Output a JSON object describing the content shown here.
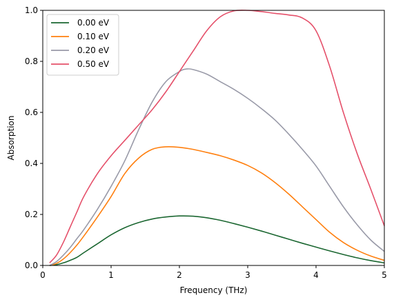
{
  "chart_data": {
    "type": "line",
    "title": "",
    "xlabel": "Frequency (THz)",
    "ylabel": "Absorption",
    "xlim": [
      0,
      5
    ],
    "ylim": [
      0,
      1.0
    ],
    "xticks": [
      0,
      1,
      2,
      3,
      4,
      5
    ],
    "xtick_labels": [
      "0",
      "1",
      "2",
      "3",
      "4",
      "5"
    ],
    "yticks": [
      0,
      0.2,
      0.4,
      0.6,
      0.8,
      1.0
    ],
    "ytick_labels": [
      "0.0",
      "0.2",
      "0.4",
      "0.6",
      "0.8",
      "1.0"
    ],
    "grid": false,
    "legend_position": "top-left",
    "series": [
      {
        "name": "0.00 eV",
        "color": "#1a6630",
        "x": [
          0.1,
          0.2,
          0.3,
          0.4,
          0.5,
          0.6,
          0.8,
          1.0,
          1.2,
          1.4,
          1.6,
          1.8,
          2.0,
          2.2,
          2.4,
          2.6,
          2.8,
          3.0,
          3.2,
          3.4,
          3.6,
          3.8,
          4.0,
          4.2,
          4.4,
          4.6,
          4.8,
          5.0
        ],
        "y": [
          0.0,
          0.003,
          0.01,
          0.02,
          0.032,
          0.05,
          0.085,
          0.12,
          0.148,
          0.168,
          0.182,
          0.19,
          0.194,
          0.193,
          0.187,
          0.177,
          0.164,
          0.15,
          0.135,
          0.119,
          0.103,
          0.087,
          0.072,
          0.057,
          0.043,
          0.03,
          0.019,
          0.01
        ]
      },
      {
        "name": "0.10 eV",
        "color": "#ff7f0e",
        "x": [
          0.1,
          0.2,
          0.3,
          0.4,
          0.5,
          0.6,
          0.8,
          1.0,
          1.2,
          1.4,
          1.6,
          1.8,
          2.0,
          2.2,
          2.4,
          2.6,
          2.8,
          3.0,
          3.2,
          3.4,
          3.6,
          3.8,
          4.0,
          4.2,
          4.4,
          4.6,
          4.8,
          5.0
        ],
        "y": [
          0.0,
          0.008,
          0.025,
          0.05,
          0.08,
          0.115,
          0.19,
          0.27,
          0.36,
          0.42,
          0.455,
          0.465,
          0.463,
          0.455,
          0.443,
          0.43,
          0.413,
          0.392,
          0.363,
          0.325,
          0.28,
          0.23,
          0.18,
          0.13,
          0.09,
          0.06,
          0.037,
          0.02
        ]
      },
      {
        "name": "0.20 eV",
        "color": "#999aa8",
        "x": [
          0.1,
          0.2,
          0.3,
          0.4,
          0.5,
          0.6,
          0.8,
          1.0,
          1.2,
          1.4,
          1.6,
          1.8,
          2.0,
          2.1,
          2.2,
          2.4,
          2.6,
          2.8,
          3.0,
          3.2,
          3.4,
          3.6,
          3.8,
          4.0,
          4.2,
          4.4,
          4.6,
          4.8,
          5.0
        ],
        "y": [
          0.0,
          0.015,
          0.04,
          0.07,
          0.105,
          0.14,
          0.22,
          0.31,
          0.41,
          0.53,
          0.64,
          0.72,
          0.76,
          0.77,
          0.768,
          0.75,
          0.72,
          0.69,
          0.655,
          0.615,
          0.57,
          0.515,
          0.455,
          0.39,
          0.31,
          0.23,
          0.16,
          0.1,
          0.055
        ]
      },
      {
        "name": "0.50 eV",
        "color": "#e5506a",
        "x": [
          0.1,
          0.2,
          0.3,
          0.4,
          0.5,
          0.6,
          0.8,
          1.0,
          1.2,
          1.4,
          1.6,
          1.8,
          2.0,
          2.2,
          2.4,
          2.6,
          2.8,
          3.0,
          3.2,
          3.4,
          3.6,
          3.8,
          4.0,
          4.2,
          4.4,
          4.6,
          4.8,
          5.0
        ],
        "y": [
          0.01,
          0.04,
          0.09,
          0.15,
          0.21,
          0.27,
          0.36,
          0.43,
          0.49,
          0.55,
          0.61,
          0.68,
          0.76,
          0.84,
          0.92,
          0.975,
          0.998,
          1.0,
          0.995,
          0.988,
          0.982,
          0.97,
          0.92,
          0.78,
          0.6,
          0.44,
          0.3,
          0.155
        ]
      }
    ]
  }
}
